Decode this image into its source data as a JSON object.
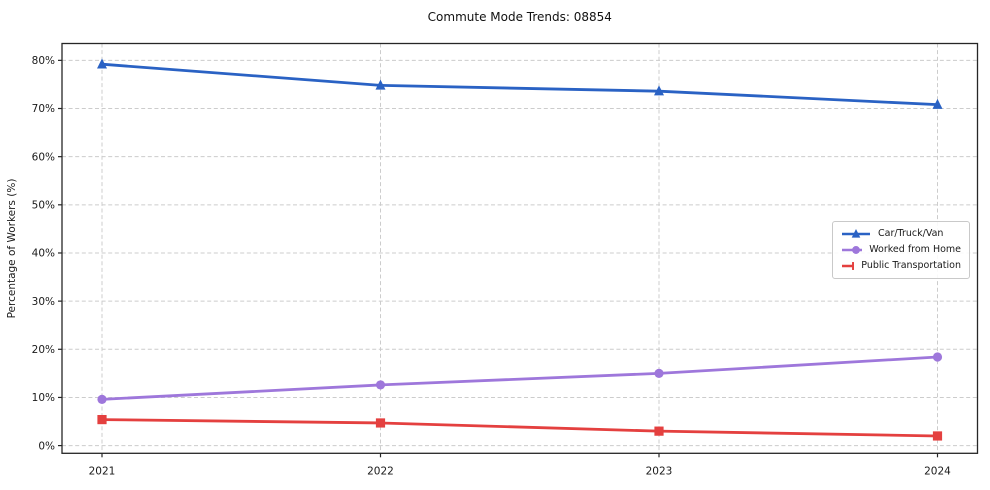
{
  "chart_data": {
    "type": "line",
    "title": "Commute Mode Trends: 08854",
    "xlabel": "",
    "ylabel": "Percentage of Workers (%)",
    "categories": [
      "2021",
      "2022",
      "2023",
      "2024"
    ],
    "series": [
      {
        "name": "Car/Truck/Van",
        "color": "#2a62c4",
        "marker": "triangle",
        "values": [
          79.2,
          74.8,
          73.6,
          70.8
        ]
      },
      {
        "name": "Worked from Home",
        "color": "#9e77db",
        "marker": "circle",
        "values": [
          9.6,
          12.6,
          15.0,
          18.4
        ]
      },
      {
        "name": "Public Transportation",
        "color": "#e4403f",
        "marker": "square",
        "values": [
          5.4,
          4.7,
          3.0,
          2.0
        ]
      }
    ],
    "yticks": [
      0,
      10,
      20,
      30,
      40,
      50,
      60,
      70,
      80
    ],
    "ytick_suffix": "%",
    "ylim": [
      -1.6,
      83.5
    ],
    "grid": true,
    "grid_style": "dashed",
    "legend_position": "center-right",
    "colors": {
      "grid": "#cccccc",
      "spine": "#262626",
      "text": "#1a1a1a",
      "legend_border": "#c9c9c9",
      "background": "#ffffff"
    }
  }
}
